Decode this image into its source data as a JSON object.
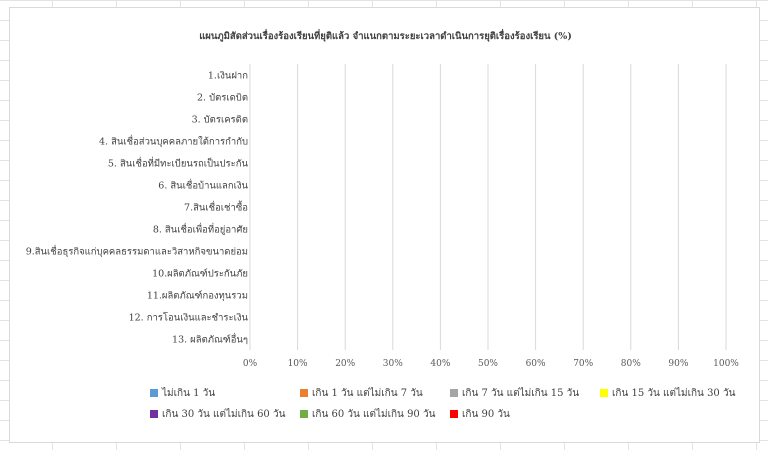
{
  "chart_data": {
    "type": "bar",
    "orientation": "horizontal",
    "stacked": true,
    "title": "แผนภูมิสัดส่วนเรื่องร้องเรียนที่ยุติแล้ว จำแนกตามระยะเวลาดำเนินการยุติเรื่องร้องเรียน (%)",
    "categories": [
      "1.เงินฝาก",
      "2. บัตรเดบิต",
      "3. บัตรเครดิต",
      "4. สินเชื่อส่วนบุคคลภายใต้การกำกับ",
      "5. สินเชื่อที่มีทะเบียนรถเป็นประกัน",
      "6. สินเชื่อบ้านแลกเงิน",
      "7.สินเชื่อเช่าซื้อ",
      "8. สินเชื่อเพื่อที่อยู่อาศัย",
      "9.สินเชื่อธุรกิจแก่บุคคลธรรมดาและวิสาหกิจขนาดย่อม",
      "10.ผลิตภัณฑ์ประกันภัย",
      "11.ผลิตภัณฑ์กองทุนรวม",
      "12. การโอนเงินและชำระเงิน",
      "13. ผลิตภัณฑ์อื่นๆ"
    ],
    "series": [
      {
        "name": "ไม่เกิน 1 วัน",
        "color": "#5b9bd5",
        "values": [
          0,
          0,
          0,
          0,
          0,
          0,
          0,
          0,
          0,
          0,
          0,
          0,
          0
        ]
      },
      {
        "name": "เกิน 1 วัน แต่ไม่เกิน 7 วัน",
        "color": "#ed7d31",
        "values": [
          0,
          0,
          0,
          0,
          0,
          0,
          0,
          0,
          0,
          0,
          0,
          0,
          0
        ]
      },
      {
        "name": "เกิน 7 วัน แต่ไม่เกิน 15 วัน",
        "color": "#a5a5a5",
        "values": [
          0,
          0,
          0,
          0,
          0,
          0,
          0,
          0,
          0,
          0,
          0,
          0,
          0
        ]
      },
      {
        "name": "เกิน 15 วัน แต่ไม่เกิน 30 วัน",
        "color": "#ffff00",
        "values": [
          0,
          0,
          0,
          0,
          0,
          0,
          0,
          0,
          0,
          0,
          0,
          0,
          0
        ]
      },
      {
        "name": "เกิน 30 วัน แต่ไม่เกิน 60 วัน",
        "color": "#7030a0",
        "values": [
          0,
          0,
          0,
          0,
          0,
          0,
          0,
          0,
          0,
          0,
          0,
          0,
          0
        ]
      },
      {
        "name": "เกิน 60 วัน แต่ไม่เกิน 90 วัน",
        "color": "#70ad47",
        "values": [
          0,
          0,
          0,
          0,
          0,
          0,
          0,
          0,
          0,
          0,
          0,
          0,
          0
        ]
      },
      {
        "name": "เกิน 90 วัน",
        "color": "#ff0000",
        "values": [
          0,
          0,
          0,
          0,
          0,
          0,
          0,
          0,
          0,
          0,
          0,
          0,
          0
        ]
      }
    ],
    "xlim": [
      0,
      100
    ],
    "xticks": [
      "0%",
      "10%",
      "20%",
      "30%",
      "40%",
      "50%",
      "60%",
      "70%",
      "80%",
      "90%",
      "100%"
    ],
    "grid": "vertical",
    "legend_position": "bottom"
  }
}
